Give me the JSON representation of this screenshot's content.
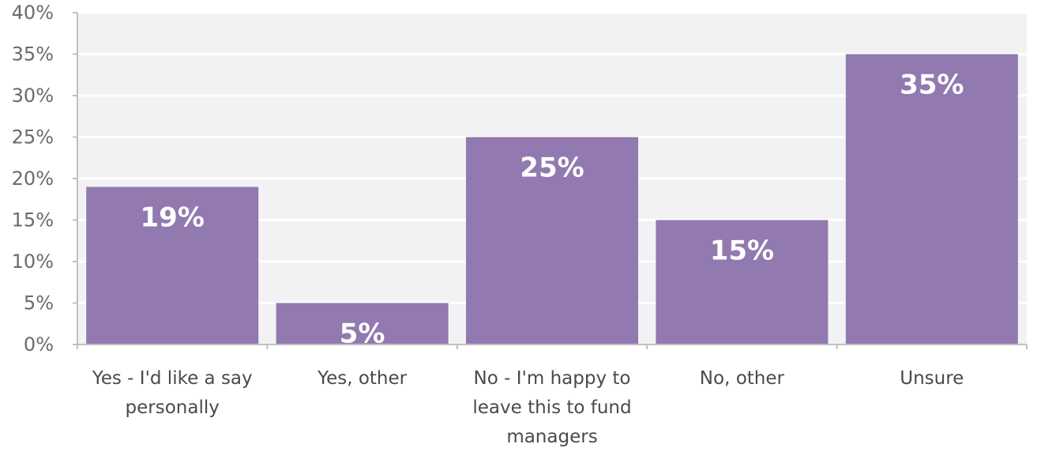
{
  "chart_data": {
    "type": "bar",
    "categories": [
      [
        "Yes - I'd like a say",
        "personally"
      ],
      [
        "Yes, other"
      ],
      [
        "No - I'm happy to",
        "leave this to fund",
        "managers"
      ],
      [
        "No, other"
      ],
      [
        "Unsure"
      ]
    ],
    "values": [
      19,
      5,
      25,
      15,
      35
    ],
    "data_labels": [
      "19%",
      "5%",
      "25%",
      "15%",
      "35%"
    ],
    "y_ticks": [
      "0%",
      "5%",
      "10%",
      "15%",
      "20%",
      "25%",
      "30%",
      "35%",
      "40%"
    ],
    "ylim": [
      0,
      40
    ],
    "grid": true,
    "colors": {
      "bar": "#9279b0",
      "plot_background": "#f2f2f4",
      "gridline": "#ffffff",
      "axis": "#c0c0c0"
    }
  }
}
